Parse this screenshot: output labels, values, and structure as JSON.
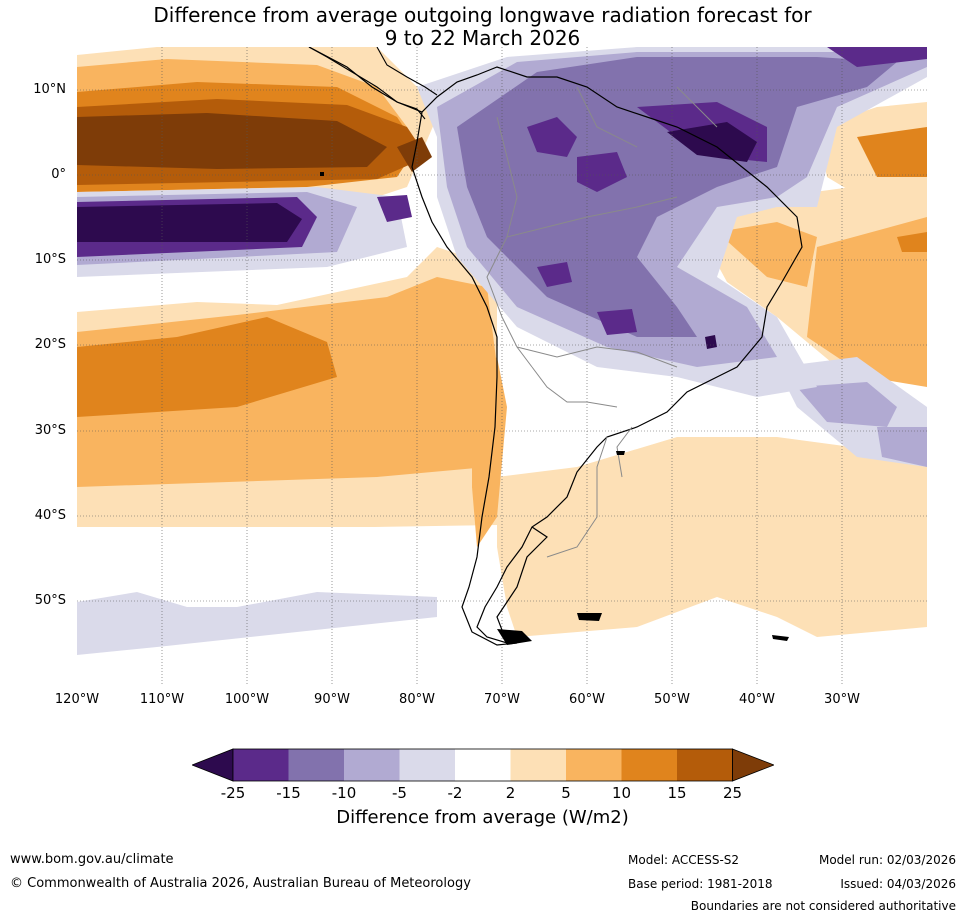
{
  "title": {
    "line1": "Difference from average outgoing longwave radiation forecast for",
    "line2": "9 to 22 March 2026"
  },
  "map": {
    "lat_labels": [
      "10°N",
      "0°",
      "10°S",
      "20°S",
      "30°S",
      "40°S",
      "50°S"
    ],
    "lon_labels": [
      "120°W",
      "110°W",
      "100°W",
      "90°W",
      "80°W",
      "70°W",
      "60°W",
      "50°W",
      "40°W",
      "30°W"
    ],
    "region": "South America and adjacent oceans"
  },
  "colorbar": {
    "ticks": [
      "-25",
      "-15",
      "-10",
      "-5",
      "-2",
      "2",
      "5",
      "10",
      "15",
      "25"
    ],
    "label": "Difference from average (W/m2)",
    "colors": {
      "below_-25": "#2d0a4e",
      "-25_-15": "#5b2a8a",
      "-15_-10": "#8272ad",
      "-10_-5": "#b1aad2",
      "-5_-2": "#dadaea",
      "-2_2": "#ffffff",
      "2_5": "#fde0b6",
      "5_10": "#f9b45f",
      "10_15": "#e0841d",
      "15_25": "#b45c0a",
      "above_25": "#7e3c08"
    }
  },
  "footer": {
    "website": "www.bom.gov.au/climate",
    "copyright": "© Commonwealth of Australia 2026, Australian Bureau of Meteorology",
    "model": "Model: ACCESS-S2",
    "base_period": "Base period: 1981-2018",
    "model_run": "Model run: 02/03/2026",
    "issued": "Issued: 04/03/2026",
    "disclaimer": "Boundaries are not considered authoritative"
  }
}
